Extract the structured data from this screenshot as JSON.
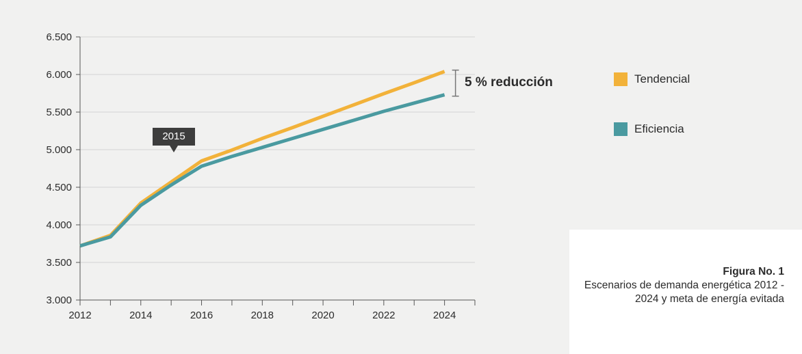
{
  "chart_data": {
    "type": "line",
    "title": "",
    "xlabel": "",
    "ylabel": "",
    "x": [
      2012,
      2013,
      2014,
      2015,
      2016,
      2017,
      2018,
      2019,
      2020,
      2021,
      2022,
      2023,
      2024
    ],
    "x_ticks": [
      "2012",
      "2014",
      "2016",
      "2018",
      "2020",
      "2022",
      "2024"
    ],
    "x_tick_values": [
      2012,
      2014,
      2016,
      2018,
      2020,
      2022,
      2024
    ],
    "xlim": [
      2012,
      2025
    ],
    "y_ticks": [
      "3.000",
      "3.500",
      "4.000",
      "4.500",
      "5.000",
      "5.500",
      "6.000",
      "6.500"
    ],
    "y_tick_values": [
      3000,
      3500,
      4000,
      4500,
      5000,
      5500,
      6000,
      6500
    ],
    "ylim": [
      3000,
      6500
    ],
    "grid": true,
    "legend_position": "right",
    "series": [
      {
        "name": "Tendencial",
        "color": "#f2b23a",
        "values": [
          3720,
          3860,
          4290,
          4570,
          4850,
          4995,
          5150,
          5295,
          5445,
          5595,
          5745,
          5890,
          6040
        ]
      },
      {
        "name": "Eficiencia",
        "color": "#4a9aa0",
        "values": [
          3720,
          3840,
          4260,
          4530,
          4780,
          4910,
          5030,
          5150,
          5270,
          5390,
          5510,
          5620,
          5730
        ]
      }
    ],
    "annotations": {
      "year_flag": "2015",
      "reduction": "5 % reducción"
    }
  },
  "caption": {
    "number": "Figura No. 1",
    "description": "Escenarios de demanda energética 2012 - 2024 y meta de energía evitada"
  },
  "colors": {
    "background": "#f1f1f0",
    "grid": "#d3d3d3",
    "axis": "#555555",
    "flag": "#3d3d3d"
  }
}
